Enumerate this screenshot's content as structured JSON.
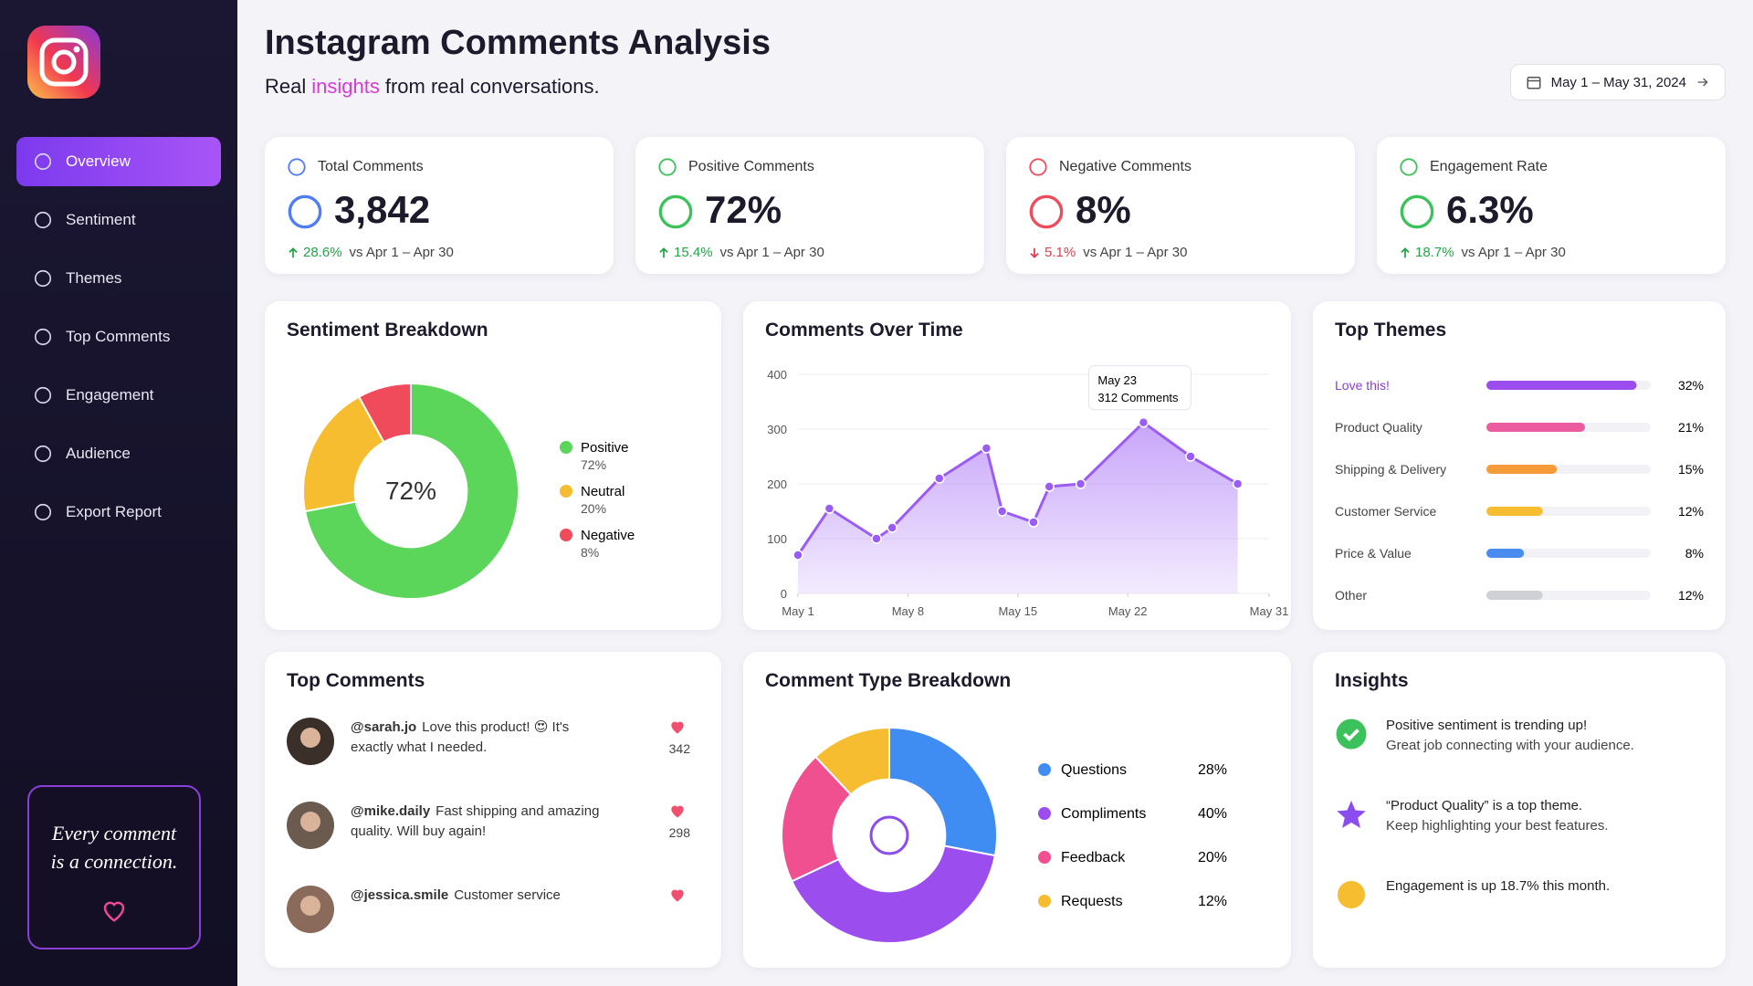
{
  "sidebar": {
    "nav": [
      "Overview",
      "Sentiment",
      "Themes",
      "Top Comments",
      "Engagement",
      "Audience",
      "Export Report"
    ],
    "active": 0,
    "quote": "Every comment is a connection."
  },
  "header": {
    "title": "Instagram Comments Analysis",
    "subtitle": [
      "Real",
      "insights",
      "from real conversations."
    ],
    "date_range": "May 1 – May 31, 2024"
  },
  "kpis": [
    {
      "label": "Total Comments",
      "value": "3,842",
      "change": "28.6%",
      "compare": "vs Apr 1 – Apr 30",
      "direction": "up",
      "color": "#4f7cf7"
    },
    {
      "label": "Positive Comments",
      "value": "72%",
      "change": "15.4%",
      "compare": "vs Apr 1 – Apr 30",
      "direction": "up",
      "color": "#3cc25a"
    },
    {
      "label": "Negative Comments",
      "value": "8%",
      "change": "5.1%",
      "compare": "vs Apr 1 – Apr 30",
      "direction": "down",
      "color": "#ef4b5a"
    },
    {
      "label": "Engagement Rate",
      "value": "6.3%",
      "change": "18.7%",
      "compare": "vs Apr 1 – Apr 30",
      "direction": "up",
      "color": "#3cc25a"
    }
  ],
  "chart_data": [
    {
      "type": "donut",
      "title": "Sentiment Breakdown",
      "center_label": "72%",
      "categories": [
        "Positive",
        "Neutral",
        "Negative"
      ],
      "values": [
        72,
        20,
        8
      ],
      "value_labels": [
        "72%",
        "20%",
        "8%"
      ],
      "colors": [
        "#5bd65b",
        "#f5bd2f",
        "#ef4b5a"
      ]
    },
    {
      "type": "line",
      "title": "Comments Over Time",
      "x": [
        1,
        3,
        6,
        7,
        10,
        13,
        14,
        16,
        17,
        19,
        23,
        26,
        29
      ],
      "values": [
        70,
        155,
        100,
        120,
        210,
        265,
        150,
        130,
        195,
        200,
        312,
        250,
        200
      ],
      "color": "#9b5cf6",
      "xlim": [
        1,
        31
      ],
      "xticks": [
        {
          "value": 1,
          "label": "May 1"
        },
        {
          "value": 8,
          "label": "May 8"
        },
        {
          "value": 15,
          "label": "May 15"
        },
        {
          "value": 22,
          "label": "May 22"
        },
        {
          "value": 31,
          "label": "May 31"
        }
      ],
      "ylim": [
        0,
        400
      ],
      "yticks": [
        0,
        100,
        200,
        300,
        400
      ],
      "grid": true,
      "annotation": {
        "title": "May 23",
        "text": "312 Comments"
      }
    },
    {
      "type": "hbar",
      "title": "Top Themes",
      "categories": [
        "Love this!",
        "Product Quality",
        "Shipping & Delivery",
        "Customer Service",
        "Price & Value",
        "Other"
      ],
      "values": [
        32,
        21,
        15,
        12,
        8,
        12
      ],
      "value_labels": [
        "32%",
        "21%",
        "15%",
        "12%",
        "8%",
        "12%"
      ],
      "colors": [
        "#9b4dee",
        "#ec5b9f",
        "#f59b3a",
        "#f5bd2f",
        "#4a8cf0",
        "#cfcfd6"
      ],
      "xlim": [
        0,
        35
      ]
    },
    {
      "type": "donut",
      "title": "Comment Type Breakdown",
      "categories": [
        "Questions",
        "Compliments",
        "Feedback",
        "Requests"
      ],
      "values": [
        28,
        40,
        20,
        12
      ],
      "value_labels": [
        "28%",
        "40%",
        "20%",
        "12%"
      ],
      "colors": [
        "#3f8cf3",
        "#9b4dee",
        "#f0508f",
        "#f5bd2f"
      ]
    }
  ],
  "top_comments": {
    "title": "Top Comments",
    "items": [
      {
        "user": "@sarah.jo",
        "text": "Love this product! 😍 It's exactly what I needed.",
        "likes": "342"
      },
      {
        "user": "@mike.daily",
        "text": "Fast shipping and amazing quality. Will buy again!",
        "likes": "298"
      },
      {
        "user": "@jessica.smile",
        "text": "Customer service"
      }
    ]
  },
  "insights": {
    "title": "Insights",
    "items": [
      {
        "title": "Positive sentiment is trending up!",
        "body": "Great job connecting with your audience.",
        "icon": "check",
        "color": "#3cc25a"
      },
      {
        "title": "“Product Quality” is a top theme.",
        "body": "Keep highlighting your best features.",
        "icon": "star",
        "color": "#8b4cf0"
      },
      {
        "title": "Engagement is up 18.7% this month.",
        "icon": "dot",
        "color": "#f5bd2f"
      }
    ]
  }
}
